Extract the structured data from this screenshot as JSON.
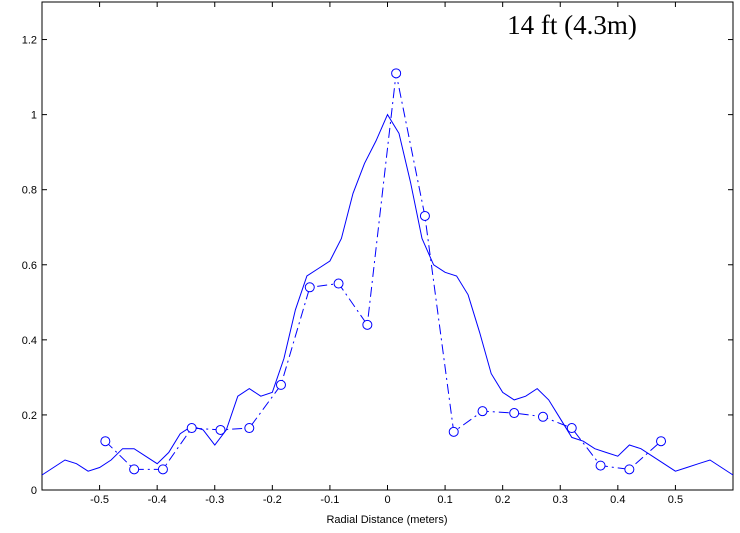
{
  "chart_data": {
    "type": "line",
    "title": "",
    "annotation": "14 ft (4.3m)",
    "xlabel": "Radial Distance (meters)",
    "ylabel": "",
    "xlim": [
      -0.6,
      0.6
    ],
    "ylim": [
      0,
      1.3
    ],
    "xticks": [
      -0.5,
      -0.4,
      -0.3,
      -0.2,
      -0.1,
      0,
      0.1,
      0.2,
      0.3,
      0.4,
      0.5
    ],
    "xtick_labels": [
      "-0.5",
      "-0.4",
      "-0.3",
      "-0.2",
      "-0.1",
      "0",
      "0.1",
      "0.2",
      "0.3",
      "0.4",
      "0.5"
    ],
    "yticks": [
      0,
      0.2,
      0.4,
      0.6,
      0.8,
      1.0,
      1.2
    ],
    "ytick_labels": [
      "0",
      "0.2",
      "0.4",
      "0.6",
      "0.8",
      "1",
      "1.2"
    ],
    "grid": false,
    "color": "#0000ff",
    "series": [
      {
        "style": "solid",
        "x": [
          -0.6,
          -0.58,
          -0.56,
          -0.54,
          -0.52,
          -0.5,
          -0.48,
          -0.46,
          -0.44,
          -0.42,
          -0.4,
          -0.38,
          -0.36,
          -0.34,
          -0.32,
          -0.3,
          -0.28,
          -0.26,
          -0.24,
          -0.22,
          -0.2,
          -0.18,
          -0.16,
          -0.14,
          -0.12,
          -0.1,
          -0.08,
          -0.06,
          -0.04,
          -0.02,
          0,
          0.02,
          0.04,
          0.06,
          0.08,
          0.1,
          0.12,
          0.14,
          0.16,
          0.18,
          0.2,
          0.22,
          0.24,
          0.26,
          0.28,
          0.3,
          0.32,
          0.34,
          0.36,
          0.38,
          0.4,
          0.42,
          0.44,
          0.46,
          0.48,
          0.5,
          0.52,
          0.54,
          0.56,
          0.58,
          0.6
        ],
        "y": [
          0.04,
          0.06,
          0.08,
          0.07,
          0.05,
          0.06,
          0.08,
          0.11,
          0.11,
          0.09,
          0.07,
          0.1,
          0.15,
          0.17,
          0.16,
          0.12,
          0.16,
          0.25,
          0.27,
          0.25,
          0.26,
          0.35,
          0.48,
          0.57,
          0.59,
          0.61,
          0.67,
          0.79,
          0.87,
          0.93,
          1.0,
          0.95,
          0.82,
          0.67,
          0.6,
          0.58,
          0.57,
          0.52,
          0.42,
          0.31,
          0.26,
          0.24,
          0.25,
          0.27,
          0.24,
          0.19,
          0.14,
          0.13,
          0.11,
          0.1,
          0.09,
          0.12,
          0.11,
          0.09,
          0.07,
          0.05,
          0.06,
          0.07,
          0.08,
          0.06,
          0.04
        ]
      },
      {
        "style": "dashdot",
        "marker": "circle",
        "x": [
          -0.49,
          -0.44,
          -0.39,
          -0.34,
          -0.29,
          -0.24,
          -0.185,
          -0.135,
          -0.085,
          -0.035,
          0.015,
          0.065,
          0.115,
          0.165,
          0.22,
          0.27,
          0.32,
          0.37,
          0.42,
          0.475
        ],
        "y": [
          0.13,
          0.055,
          0.055,
          0.165,
          0.16,
          0.165,
          0.28,
          0.54,
          0.55,
          0.44,
          1.11,
          0.73,
          0.155,
          0.21,
          0.205,
          0.195,
          0.165,
          0.065,
          0.055,
          0.13
        ]
      }
    ]
  }
}
